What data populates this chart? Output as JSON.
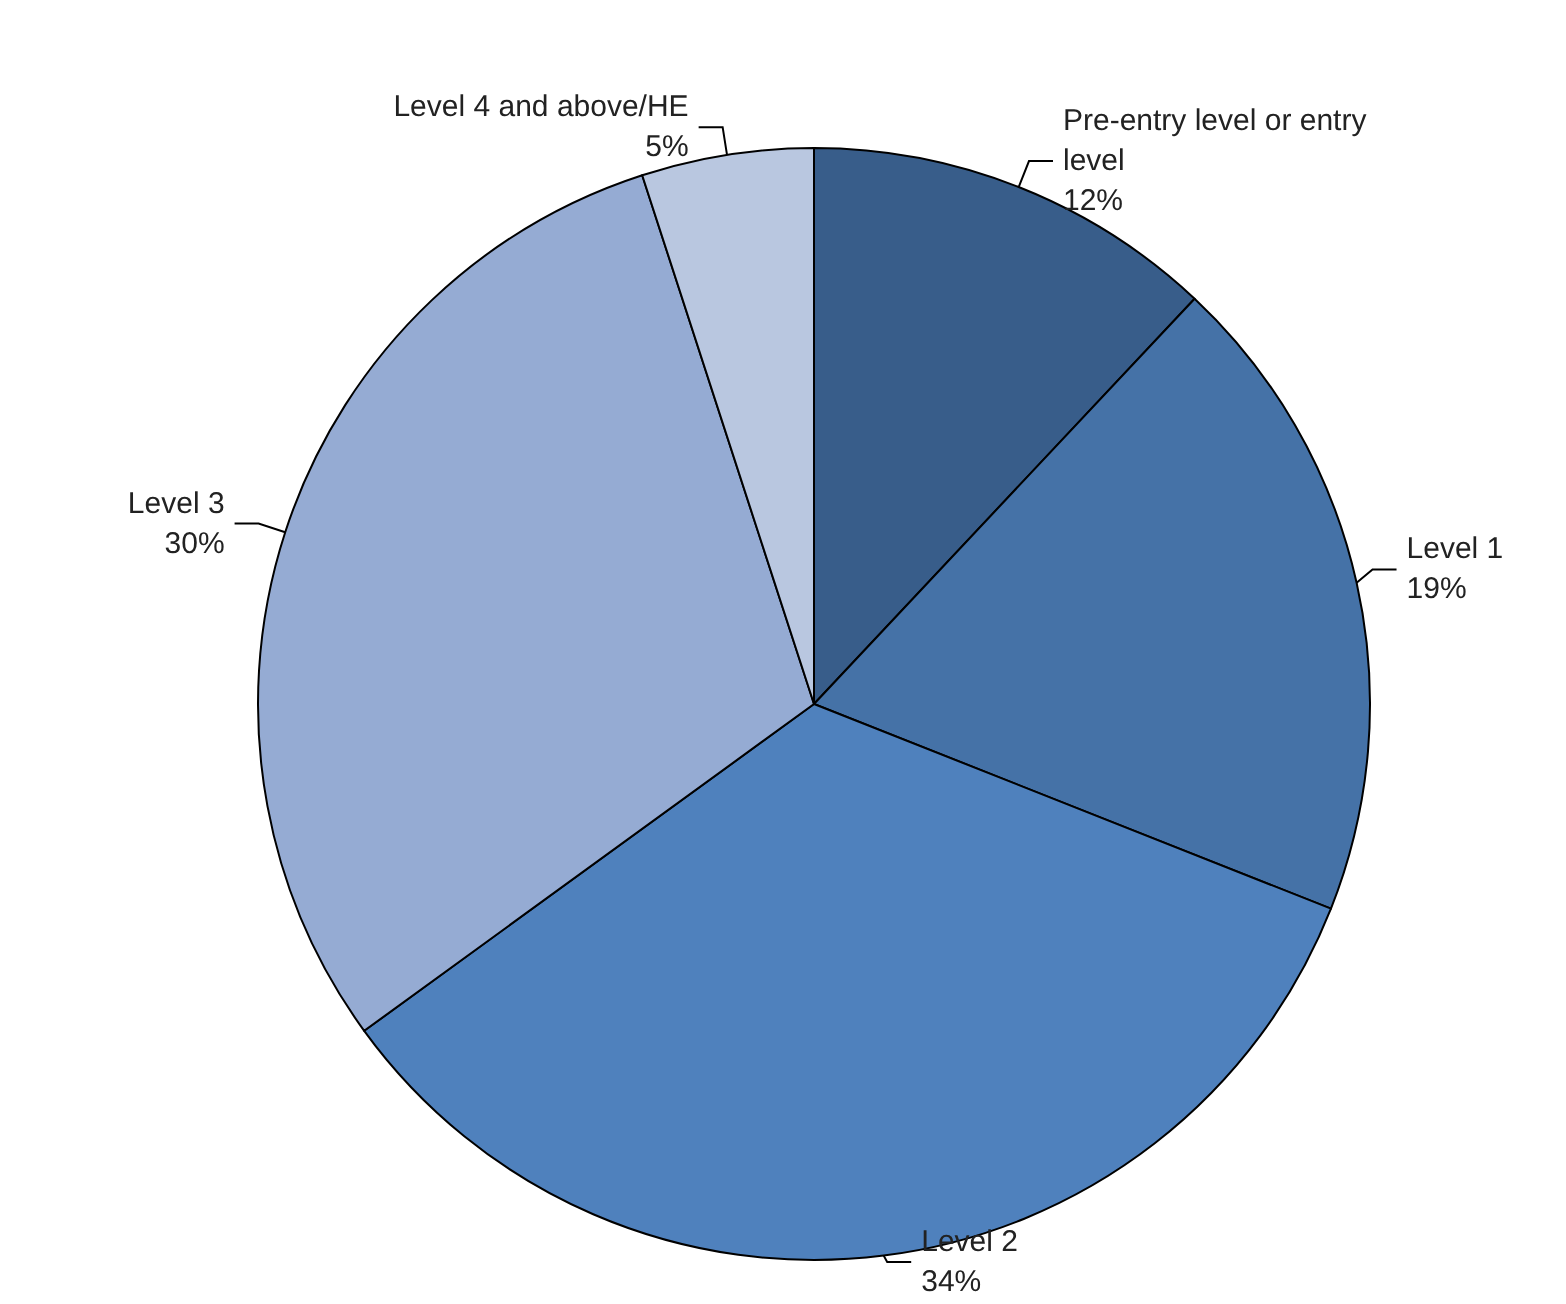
{
  "chart_data": {
    "type": "pie",
    "categories": [
      "Pre-entry level or entry level",
      "Level 1",
      "Level 2",
      "Level 3",
      "Level 4 and above/HE"
    ],
    "values": [
      12,
      19,
      34,
      30,
      5
    ],
    "colors": [
      "#385d8a",
      "#4572a7",
      "#4f81bd",
      "#95abd3",
      "#b9c7e0"
    ],
    "value_labels": [
      "12%",
      "19%",
      "34%",
      "30%",
      "5%"
    ],
    "legend": false
  }
}
